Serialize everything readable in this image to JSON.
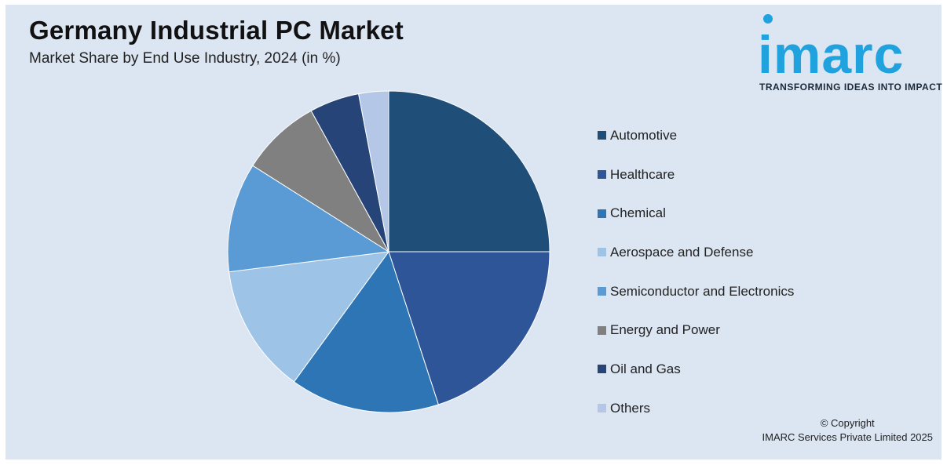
{
  "header": {
    "title": "Germany Industrial PC Market",
    "subtitle": "Market Share by End Use Industry, 2024 (in %)"
  },
  "logo": {
    "word": "imarc",
    "tagline": "TRANSFORMING IDEAS INTO IMPACT",
    "color": "#1fa2de"
  },
  "chart_data": {
    "type": "pie",
    "start_angle_deg": 0,
    "direction": "clockwise-from-top",
    "legend_position": "right",
    "slices": [
      {
        "label": "Automotive",
        "value": 25,
        "color": "#1f4e79"
      },
      {
        "label": "Healthcare",
        "value": 20,
        "color": "#2e5597"
      },
      {
        "label": "Chemical",
        "value": 15,
        "color": "#2e75b6"
      },
      {
        "label": "Aerospace and Defense",
        "value": 13,
        "color": "#9dc3e6"
      },
      {
        "label": "Semiconductor and Electronics",
        "value": 11,
        "color": "#5b9bd5"
      },
      {
        "label": "Energy and Power",
        "value": 8,
        "color": "#808080"
      },
      {
        "label": "Oil and Gas",
        "value": 5,
        "color": "#264478"
      },
      {
        "label": "Others",
        "value": 3,
        "color": "#b4c7e7"
      }
    ]
  },
  "footer": {
    "copyright_line1": "© Copyright",
    "copyright_line2": "IMARC Services Private Limited 2025"
  }
}
